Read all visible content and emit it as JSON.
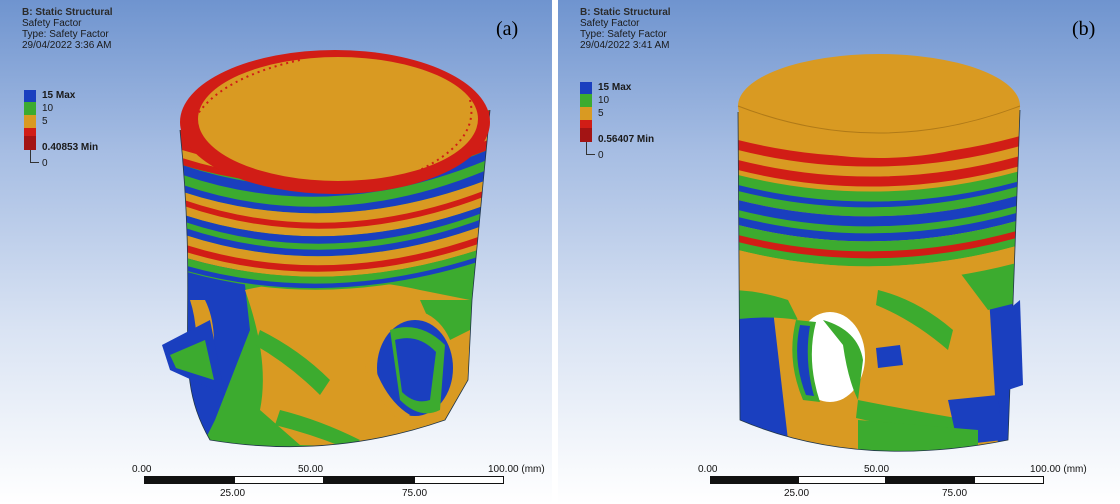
{
  "panels": [
    {
      "id": "a",
      "title": "B: Static Structural",
      "result": "Safety Factor",
      "type_line": "Type: Safety Factor",
      "timestamp": "29/04/2022 3:36 AM",
      "tag": "(a)",
      "legend": [
        {
          "label": "15 Max",
          "bold": true
        },
        {
          "label": "10",
          "bold": false
        },
        {
          "label": "5",
          "bold": false
        },
        {
          "label": "0.40853 Min",
          "bold": true
        },
        {
          "label": "0",
          "bold": false
        }
      ],
      "scale": {
        "t0": "0.00",
        "t50": "50.00",
        "t100": "100.00 (mm)",
        "t25": "25.00",
        "t75": "75.00"
      }
    },
    {
      "id": "b",
      "title": "B: Static Structural",
      "result": "Safety Factor",
      "type_line": "Type: Safety Factor",
      "timestamp": "29/04/2022 3:41 AM",
      "tag": "(b)",
      "legend": [
        {
          "label": "15 Max",
          "bold": true
        },
        {
          "label": "10",
          "bold": false
        },
        {
          "label": "5",
          "bold": false
        },
        {
          "label": "0.56407 Min",
          "bold": true
        },
        {
          "label": "0",
          "bold": false
        }
      ],
      "scale": {
        "t0": "0.00",
        "t50": "50.00",
        "t100": "100.00 (mm)",
        "t25": "25.00",
        "t75": "75.00"
      }
    }
  ],
  "colors": {
    "blue": "#1a3fbf",
    "green": "#3cab2f",
    "orange": "#d99a22",
    "red": "#d11d16",
    "dark_red": "#a31414"
  }
}
